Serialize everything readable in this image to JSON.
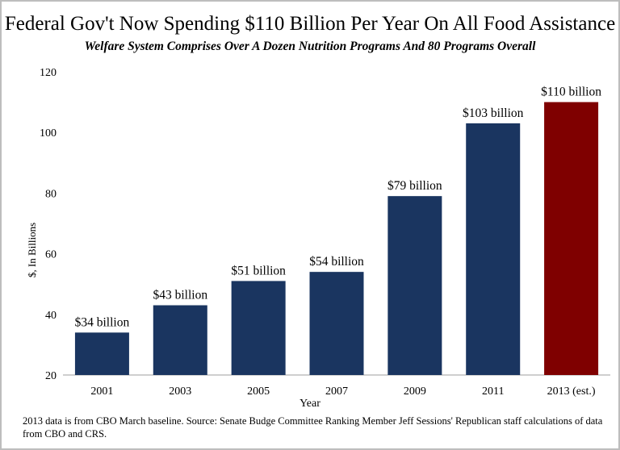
{
  "chart_data": {
    "type": "bar",
    "title": "Federal Gov't Now Spending $110 Billion Per Year On All Food Assistance",
    "subtitle": "Welfare System Comprises Over A Dozen Nutrition Programs And 80 Programs Overall",
    "xlabel": "Year",
    "ylabel": "$, In Billions",
    "ylim": [
      20,
      120
    ],
    "yticks": [
      20,
      40,
      60,
      80,
      100,
      120
    ],
    "grid": false,
    "categories": [
      "2001",
      "2003",
      "2005",
      "2007",
      "2009",
      "2011",
      "2013 (est.)"
    ],
    "values": [
      34,
      43,
      51,
      54,
      79,
      103,
      110
    ],
    "data_labels": [
      "$34 billion",
      "$43 billion",
      "$51 billion",
      "$54 billion",
      "$79 billion",
      "$103 billion",
      "$110 billion"
    ],
    "colors": [
      "#1a3560",
      "#1a3560",
      "#1a3560",
      "#1a3560",
      "#1a3560",
      "#1a3560",
      "#7f0000"
    ],
    "footnote": "2013 data is from CBO March baseline. Source:  Senate Budge Committee Ranking Member Jeff Sessions' Republican staff calculations of data from CBO and CRS."
  }
}
